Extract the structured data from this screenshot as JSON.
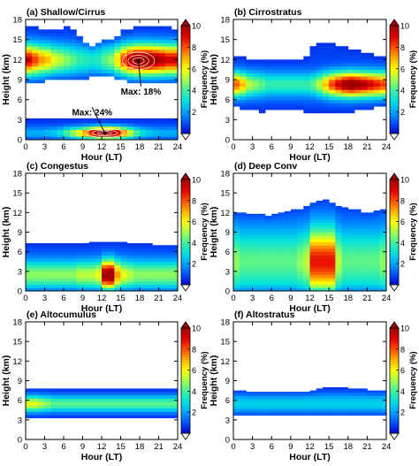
{
  "figure": {
    "xlabel": "Hour (LT)",
    "ylabel": "Height (km)",
    "colorbar_label": "Frequency (%)",
    "colorbar_ticks": [
      2,
      4,
      6,
      8,
      10
    ],
    "colorbar_range": [
      0,
      10
    ],
    "colormap": [
      "#0000c8",
      "#0050ff",
      "#00a0ff",
      "#00e0e0",
      "#40f0a0",
      "#a0ff50",
      "#ffff00",
      "#ffb000",
      "#ff5000",
      "#e00000",
      "#a00000"
    ]
  },
  "chart_data": [
    {
      "type": "heatmap",
      "title": "(a) Shallow/Cirrus",
      "xlabel": "Hour (LT)",
      "ylabel": "Height (km)",
      "xlim": [
        0,
        24
      ],
      "ylim": [
        0,
        18
      ],
      "xticks": [
        0,
        3,
        6,
        9,
        12,
        15,
        18,
        21,
        24
      ],
      "yticks": [
        0,
        3,
        6,
        9,
        12,
        15,
        18
      ],
      "layers": [
        {
          "name": "cirrus",
          "top": [
            17,
            17,
            16.5,
            16.5,
            16.5,
            16.5,
            17,
            16.5,
            15.5,
            14.5,
            14,
            14.5,
            15,
            15,
            15.5,
            16.5,
            16.5,
            17,
            17,
            17,
            17,
            17,
            17,
            16.5
          ],
          "bottom": [
            8.5,
            8.5,
            8.5,
            9,
            9,
            9,
            9,
            9,
            9,
            9,
            9.5,
            9.5,
            9.5,
            9.5,
            9,
            9,
            8.5,
            8.5,
            8.5,
            8.5,
            8.5,
            8.5,
            8.5,
            8.5
          ],
          "peak": [
            8.5,
            7.5,
            6.5,
            6,
            5,
            4.5,
            4,
            3.5,
            3,
            2.8,
            2.6,
            2.8,
            3.5,
            4,
            5.5,
            7.5,
            9,
            10,
            10,
            10,
            9.5,
            9,
            8.5,
            8.5
          ],
          "center": 12,
          "width": 2.2
        },
        {
          "name": "shallow",
          "top": [
            3.2,
            3.2,
            3.2,
            3.2,
            3.2,
            3.2,
            3.2,
            3.2,
            3.2,
            3.2,
            3.2,
            3.2,
            3.2,
            3.2,
            3.2,
            3.2,
            3.2,
            3.2,
            3.2,
            3.2,
            3.2,
            3.2,
            3.2,
            3.2
          ],
          "bottom": [
            0,
            0,
            0,
            0,
            0,
            0,
            0,
            0,
            0,
            0,
            0,
            0,
            0,
            0,
            0,
            0,
            0,
            0,
            0,
            0,
            0,
            0,
            0,
            0
          ],
          "peak": [
            1.5,
            1.5,
            1.5,
            1.8,
            2,
            2.5,
            3.5,
            4.5,
            5.5,
            7,
            8.5,
            10,
            10,
            10,
            9,
            7,
            5,
            3.5,
            2.5,
            2,
            1.8,
            1.5,
            1.5,
            1.5
          ],
          "center": 1.0,
          "width": 0.9
        }
      ],
      "annotations": [
        {
          "text": "Max: 18%",
          "x": 18.2,
          "y": 7.3,
          "arrow_to": [
            17.8,
            11.8
          ]
        },
        {
          "text": "Max: 24%",
          "x": 10.5,
          "y": 4.2,
          "arrow_to": [
            12.5,
            1.0
          ]
        }
      ]
    },
    {
      "type": "heatmap",
      "title": "(b) Cirrostratus",
      "xlabel": "Hour (LT)",
      "ylabel": "Height (km)",
      "xlim": [
        0,
        24
      ],
      "ylim": [
        0,
        18
      ],
      "xticks": [
        0,
        3,
        6,
        9,
        12,
        15,
        18,
        21,
        24
      ],
      "yticks": [
        0,
        3,
        6,
        9,
        12,
        15,
        18
      ],
      "layers": [
        {
          "name": "cirrostratus",
          "top": [
            12.5,
            12.5,
            12,
            12,
            12,
            12,
            12,
            12,
            12,
            12,
            12,
            12.5,
            14,
            14.5,
            14.5,
            14.5,
            14,
            14,
            13.5,
            13.5,
            13,
            13,
            12.5,
            12.5
          ],
          "bottom": [
            5,
            4.5,
            4.5,
            4.5,
            4,
            4.5,
            4.5,
            4.5,
            4.5,
            4.5,
            4.5,
            4,
            4,
            4,
            4,
            4,
            4,
            4,
            4,
            4.5,
            4.5,
            4.5,
            5,
            5
          ],
          "peak": [
            7,
            6,
            4.5,
            4,
            3.5,
            3,
            3,
            3,
            3,
            3,
            3,
            3,
            3.5,
            4.5,
            6,
            7.5,
            8.5,
            9.5,
            10,
            9.5,
            9,
            8.5,
            8,
            7.5
          ],
          "center": 8.3,
          "width": 1.8
        }
      ],
      "annotations": []
    },
    {
      "type": "heatmap",
      "title": "(c) Congestus",
      "xlabel": "Hour (LT)",
      "ylabel": "Height (km)",
      "xlim": [
        0,
        24
      ],
      "ylim": [
        0,
        18
      ],
      "xticks": [
        0,
        3,
        6,
        9,
        12,
        15,
        18,
        21,
        24
      ],
      "yticks": [
        0,
        3,
        6,
        9,
        12,
        15,
        18
      ],
      "layers": [
        {
          "name": "congestus",
          "top": [
            7.3,
            7.3,
            7.3,
            7.3,
            7.3,
            7.3,
            7.3,
            7.3,
            7.3,
            7.3,
            7.5,
            7.5,
            7.5,
            7.5,
            7.5,
            7.5,
            7.3,
            7.3,
            7.3,
            7.3,
            7,
            7,
            7,
            7
          ],
          "bottom": [
            0,
            0,
            0,
            0,
            0,
            0,
            0,
            0,
            0,
            0,
            0,
            0,
            0,
            0,
            0,
            0,
            0,
            0,
            0,
            0,
            0,
            0,
            0,
            0
          ],
          "peak": [
            4,
            4,
            4,
            4,
            4,
            4,
            4,
            4,
            4.5,
            4.5,
            4.5,
            5,
            9.5,
            10,
            6.5,
            5,
            4.5,
            4,
            4,
            4,
            4,
            4,
            4,
            4
          ],
          "center": 2.5,
          "width": 2.2
        }
      ],
      "annotations": []
    },
    {
      "type": "heatmap",
      "title": "(d) Deep Conv",
      "xlabel": "Hour (LT)",
      "ylabel": "Height (km)",
      "xlim": [
        0,
        24
      ],
      "ylim": [
        0,
        18
      ],
      "xticks": [
        0,
        3,
        6,
        9,
        12,
        15,
        18,
        21,
        24
      ],
      "yticks": [
        0,
        3,
        6,
        9,
        12,
        15,
        18
      ],
      "layers": [
        {
          "name": "deep",
          "top": [
            12,
            12,
            11.8,
            11.8,
            11.8,
            11.5,
            11.8,
            12,
            12.2,
            12.5,
            12.5,
            13,
            13.5,
            13.8,
            14,
            13.5,
            13,
            12.8,
            12.5,
            12.5,
            12,
            12,
            12.3,
            12.5
          ],
          "bottom": [
            0,
            0,
            0,
            0,
            0,
            0,
            0,
            0,
            0,
            0,
            0,
            0,
            0,
            0,
            0,
            0,
            0,
            0,
            0,
            0,
            0,
            0,
            0,
            0
          ],
          "peak": [
            4,
            3.5,
            3.5,
            3.5,
            3.5,
            3.5,
            3.5,
            3.5,
            3.5,
            3.5,
            4,
            4.5,
            8,
            8,
            8,
            8,
            4.5,
            3.5,
            3.5,
            3.5,
            3.5,
            3.5,
            3.5,
            4
          ],
          "center": 4.5,
          "width": 5.0
        }
      ],
      "annotations": []
    },
    {
      "type": "heatmap",
      "title": "(e) Altocumulus",
      "xlabel": "Hour (LT)",
      "ylabel": "Height (km)",
      "xlim": [
        0,
        24
      ],
      "ylim": [
        0,
        18
      ],
      "xticks": [
        0,
        3,
        6,
        9,
        12,
        15,
        18,
        21,
        24
      ],
      "yticks": [
        0,
        3,
        6,
        9,
        12,
        15,
        18
      ],
      "layers": [
        {
          "name": "altocumulus",
          "top": [
            7.8,
            7.8,
            7.8,
            7.8,
            7.8,
            7.8,
            7.8,
            7.8,
            7.8,
            7.8,
            7.8,
            7.8,
            7.8,
            7.8,
            7.8,
            7.8,
            7.8,
            7.8,
            7.8,
            7.8,
            7.8,
            7.8,
            7.8,
            7.8
          ],
          "bottom": [
            3.3,
            3.3,
            3.3,
            3.3,
            3.3,
            3.3,
            3.3,
            3.3,
            3.3,
            3.3,
            3.3,
            3.3,
            3.3,
            3.3,
            3.3,
            3.3,
            3.3,
            3.3,
            3.3,
            3.3,
            3.3,
            3.3,
            3.3,
            3.3
          ],
          "peak": [
            5,
            5,
            4.5,
            4,
            3.5,
            3.5,
            3.5,
            3.5,
            3.5,
            3.5,
            3.5,
            3.5,
            3.5,
            3.5,
            3.5,
            3.5,
            3.5,
            3.5,
            3.5,
            3.5,
            3.5,
            3.5,
            3.5,
            3.5
          ],
          "center": 5.5,
          "width": 1.2
        }
      ],
      "annotations": []
    },
    {
      "type": "heatmap",
      "title": "(f) Altostratus",
      "xlabel": "Hour (LT)",
      "ylabel": "Height (km)",
      "xlim": [
        0,
        24
      ],
      "ylim": [
        0,
        18
      ],
      "xticks": [
        0,
        3,
        6,
        9,
        12,
        15,
        18,
        21,
        24
      ],
      "yticks": [
        0,
        3,
        6,
        9,
        12,
        15,
        18
      ],
      "layers": [
        {
          "name": "altostratus",
          "top": [
            7.5,
            7.5,
            7.3,
            7.3,
            7.3,
            7.3,
            7.3,
            7.3,
            7.3,
            7.3,
            7.3,
            7.3,
            7.5,
            7.8,
            8,
            8,
            8,
            8,
            7.8,
            7.8,
            7.8,
            7.5,
            7.5,
            7.5
          ],
          "bottom": [
            3.7,
            3.7,
            3.7,
            3.7,
            3.7,
            3.7,
            3.7,
            3.7,
            3.7,
            3.7,
            3.7,
            3.7,
            3.7,
            3.7,
            3.7,
            3.7,
            3.7,
            3.7,
            3.7,
            3.7,
            3.7,
            3.7,
            3.7,
            3.7
          ],
          "peak": [
            2,
            2,
            2,
            2,
            2,
            2,
            2,
            2,
            2,
            2,
            2,
            2,
            2,
            2,
            2,
            2,
            2,
            2,
            2,
            2,
            2,
            2,
            2,
            2
          ],
          "center": 5.5,
          "width": 1.5
        }
      ],
      "annotations": []
    }
  ]
}
